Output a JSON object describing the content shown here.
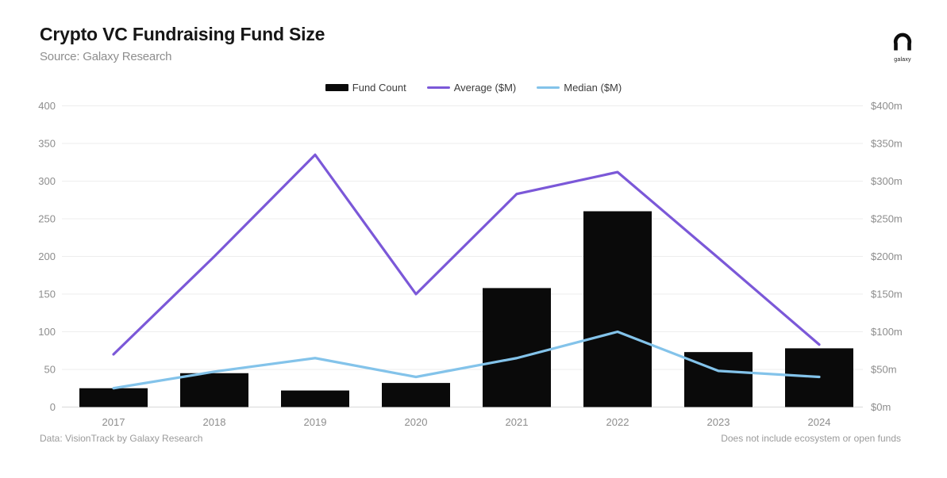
{
  "header": {
    "title": "Crypto VC Fundraising Fund Size",
    "subtitle": "Source: Galaxy Research",
    "logo_text": "galaxy"
  },
  "legend": [
    {
      "label": "Fund Count",
      "color": "#0a0a0a",
      "type": "bar"
    },
    {
      "label": "Average ($M)",
      "color": "#7b58d8",
      "type": "line"
    },
    {
      "label": "Median ($M)",
      "color": "#83c3ea",
      "type": "line"
    }
  ],
  "footer": {
    "left": "Data: VisionTrack by Galaxy Research",
    "right": "Does not include ecosystem or open funds"
  },
  "chart_data": {
    "type": "bar",
    "title": "Crypto VC Fundraising Fund Size",
    "categories": [
      "2017",
      "2018",
      "2019",
      "2020",
      "2021",
      "2022",
      "2023",
      "2024"
    ],
    "series": [
      {
        "name": "Fund Count",
        "type": "bar",
        "axis": "left",
        "color": "#0a0a0a",
        "values": [
          25,
          45,
          22,
          32,
          158,
          260,
          73,
          78
        ]
      },
      {
        "name": "Average ($M)",
        "type": "line",
        "axis": "right",
        "color": "#7b58d8",
        "values": [
          70,
          200,
          335,
          150,
          283,
          312,
          198,
          83
        ]
      },
      {
        "name": "Median ($M)",
        "type": "line",
        "axis": "right",
        "color": "#83c3ea",
        "values": [
          25,
          47,
          65,
          40,
          65,
          100,
          48,
          40
        ]
      }
    ],
    "left_axis": {
      "min": 0,
      "max": 400,
      "step": 50,
      "ticks": [
        "0",
        "50",
        "100",
        "150",
        "200",
        "250",
        "300",
        "350",
        "400"
      ]
    },
    "right_axis": {
      "min": 0,
      "max": 400,
      "step": 50,
      "ticks": [
        "$0m",
        "$50m",
        "$100m",
        "$150m",
        "$200m",
        "$250m",
        "$300m",
        "$350m",
        "$400m"
      ]
    },
    "grid": true,
    "legend_position": "top-center",
    "grid_color": "#ededed",
    "baseline_color": "#d9d9d9",
    "tick_color": "#8d8d8d"
  }
}
